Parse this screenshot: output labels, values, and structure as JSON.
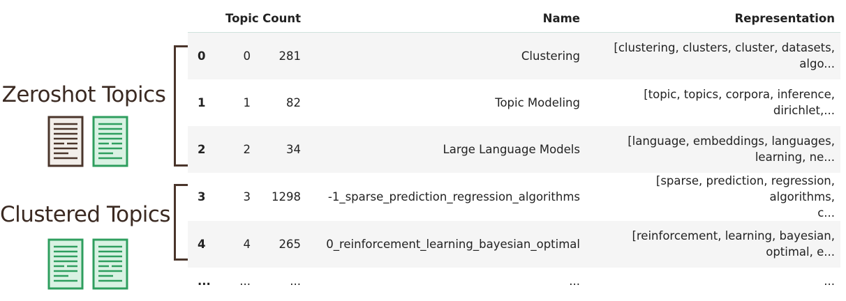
{
  "annotations": {
    "zeroshot_label": "Zeroshot Topics",
    "clustered_label": "Clustered Topics",
    "colors": {
      "dark_doc": "#4a352b",
      "green_doc": "#2e9e5e",
      "green_fill": "#d9f2e3",
      "bracket": "#4a352b"
    }
  },
  "table": {
    "headers": {
      "index": "",
      "topic": "Topic",
      "count": "Count",
      "name": "Name",
      "representation": "Representation"
    },
    "rows": [
      {
        "index": "0",
        "topic": "0",
        "count": "281",
        "name": "Clustering",
        "rep_line1": "[clustering, clusters, cluster, datasets,",
        "rep_line2": "algo..."
      },
      {
        "index": "1",
        "topic": "1",
        "count": "82",
        "name": "Topic Modeling",
        "rep_line1": "[topic, topics, corpora, inference,",
        "rep_line2": "dirichlet,..."
      },
      {
        "index": "2",
        "topic": "2",
        "count": "34",
        "name": "Large Language Models",
        "rep_line1": "[language, embeddings, languages,",
        "rep_line2": "learning, ne..."
      },
      {
        "index": "3",
        "topic": "3",
        "count": "1298",
        "name": "-1_sparse_prediction_regression_algorithms",
        "rep_line1": "[sparse, prediction, regression, algorithms,",
        "rep_line2": "c..."
      },
      {
        "index": "4",
        "topic": "4",
        "count": "265",
        "name": "0_reinforcement_learning_bayesian_optimal",
        "rep_line1": "[reinforcement, learning, bayesian,",
        "rep_line2": "optimal, e..."
      }
    ],
    "ellipsis": {
      "index": "...",
      "topic": "...",
      "count": "...",
      "name": "...",
      "representation": "..."
    }
  }
}
